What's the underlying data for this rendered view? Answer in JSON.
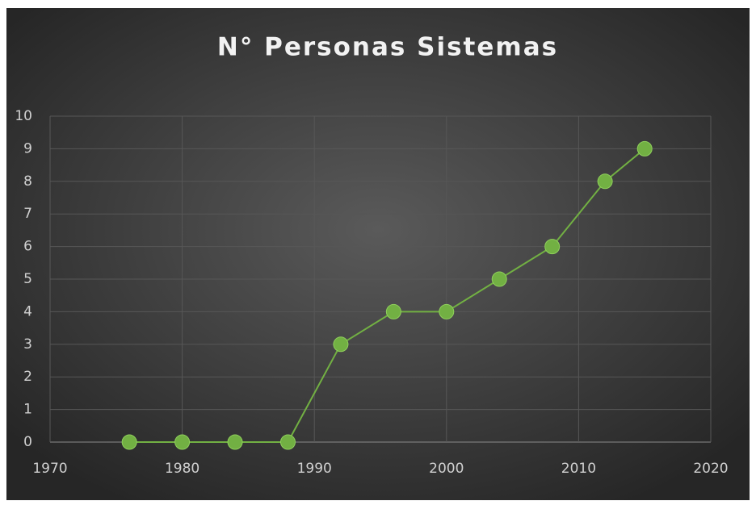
{
  "chart_data": {
    "type": "line",
    "title": "N° Personas Sistemas",
    "x": [
      1976,
      1980,
      1984,
      1988,
      1992,
      1996,
      2000,
      2004,
      2008,
      2012,
      2015
    ],
    "series": [
      {
        "color": "#72b043",
        "values": [
          0,
          0,
          0,
          0,
          3,
          4,
          4,
          5,
          6,
          8,
          9
        ]
      }
    ],
    "xlim": [
      1970,
      2020
    ],
    "xticks": [
      1970,
      1980,
      1990,
      2000,
      2010,
      2020
    ],
    "ylim": [
      0,
      10
    ],
    "yticks": [
      0,
      1,
      2,
      3,
      4,
      5,
      6,
      7,
      8,
      9,
      10
    ],
    "grid": true
  }
}
